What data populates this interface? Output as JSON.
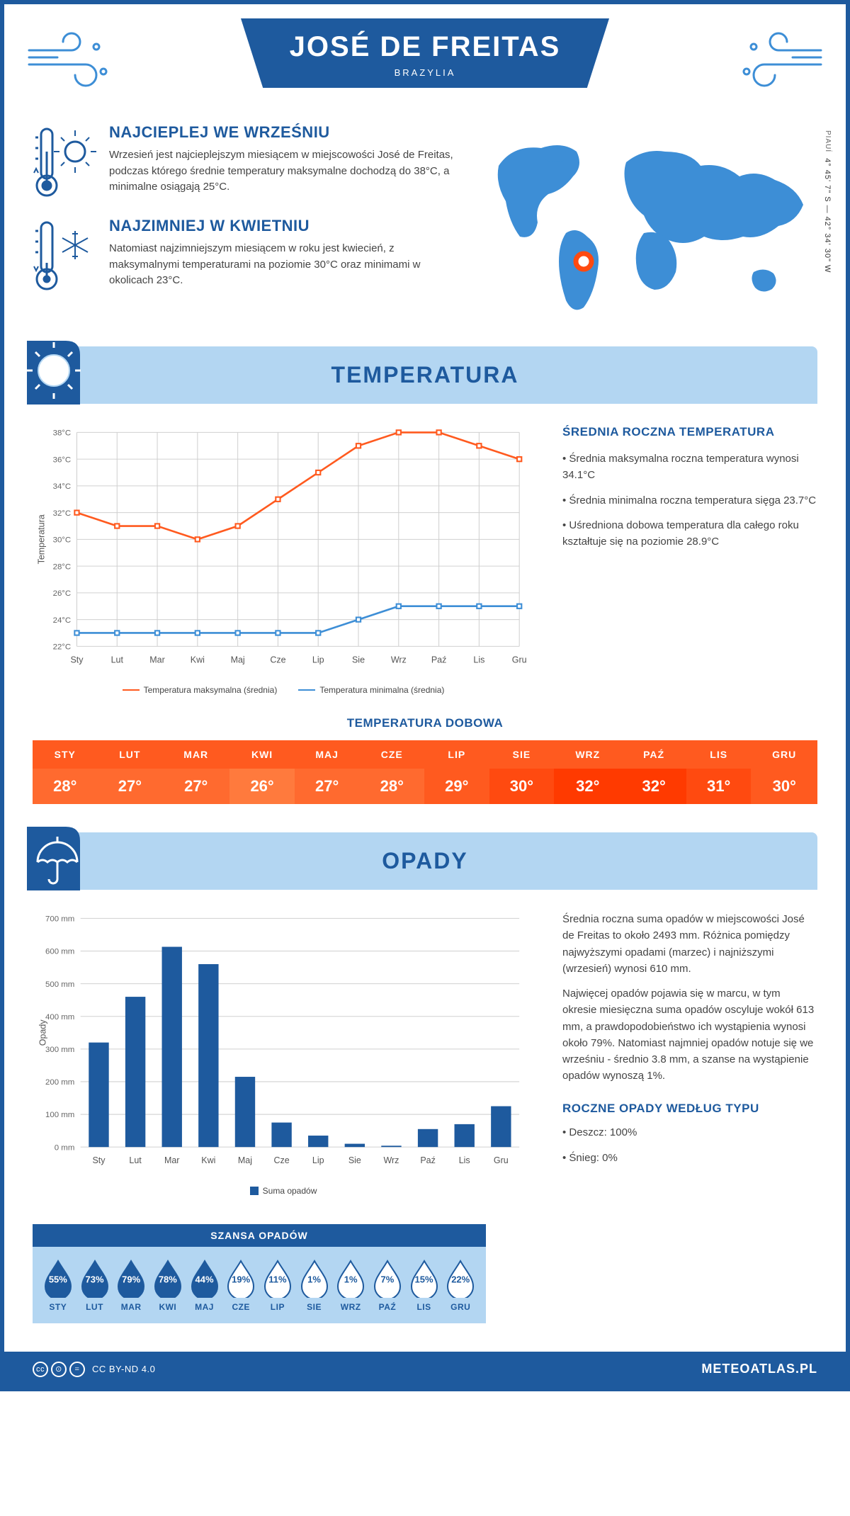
{
  "header": {
    "title": "JOSÉ DE FREITAS",
    "subtitle": "BRAZYLIA"
  },
  "coords": {
    "region": "PIAUÍ",
    "text": "4° 45' 7\" S — 42° 34' 30\" W"
  },
  "warmest": {
    "heading": "NAJCIEPLEJ WE WRZEŚNIU",
    "body": "Wrzesień jest najcieplejszym miesiącem w miejscowości José de Freitas, podczas którego średnie temperatury maksymalne dochodzą do 38°C, a minimalne osiągają 25°C."
  },
  "coldest": {
    "heading": "NAJZIMNIEJ W KWIETNIU",
    "body": "Natomiast najzimniejszym miesiącem w roku jest kwiecień, z maksymalnymi temperaturami na poziomie 30°C oraz minimami w okolicach 23°C."
  },
  "temperature_section": {
    "title": "TEMPERATURA",
    "side_heading": "ŚREDNIA ROCZNA TEMPERATURA",
    "bullets": [
      "Średnia maksymalna roczna temperatura wynosi 34.1°C",
      "Średnia minimalna roczna temperatura sięga 23.7°C",
      "Uśredniona dobowa temperatura dla całego roku kształtuje się na poziomie 28.9°C"
    ]
  },
  "months": [
    "Sty",
    "Lut",
    "Mar",
    "Kwi",
    "Maj",
    "Cze",
    "Lip",
    "Sie",
    "Wrz",
    "Paź",
    "Lis",
    "Gru"
  ],
  "months_upper": [
    "STY",
    "LUT",
    "MAR",
    "KWI",
    "MAJ",
    "CZE",
    "LIP",
    "SIE",
    "WRZ",
    "PAŹ",
    "LIS",
    "GRU"
  ],
  "temp_chart": {
    "type": "line",
    "ylabel": "Temperatura",
    "ymin": 22,
    "ymax": 38,
    "ytick_step": 2,
    "max_series": [
      32,
      31,
      31,
      30,
      31,
      33,
      35,
      37,
      38,
      38,
      37,
      36
    ],
    "min_series": [
      23,
      23,
      23,
      23,
      23,
      23,
      23,
      24,
      25,
      25,
      25,
      25
    ],
    "max_color": "#ff5a1f",
    "min_color": "#3d8ed6",
    "grid_color": "#d0d0d0",
    "legend_max": "Temperatura maksymalna (średnia)",
    "legend_min": "Temperatura minimalna (średnia)"
  },
  "daily_temp": {
    "title": "TEMPERATURA DOBOWA",
    "values": [
      "28°",
      "27°",
      "27°",
      "26°",
      "27°",
      "28°",
      "29°",
      "30°",
      "32°",
      "32°",
      "31°",
      "30°"
    ],
    "header_bg": "#ff5a1f",
    "row_bg": "#ff7a3d",
    "gradient_colors": [
      "#ff6a2f",
      "#ff6a2f",
      "#ff6a2f",
      "#ff7a3d",
      "#ff6a2f",
      "#ff6a2f",
      "#ff5a1f",
      "#ff4a10",
      "#ff3a00",
      "#ff3a00",
      "#ff4a10",
      "#ff5a1f"
    ]
  },
  "precip_section": {
    "title": "OPADY",
    "para1": "Średnia roczna suma opadów w miejscowości José de Freitas to około 2493 mm. Różnica pomiędzy najwyższymi opadami (marzec) i najniższymi (wrzesień) wynosi 610 mm.",
    "para2": "Najwięcej opadów pojawia się w marcu, w tym okresie miesięczna suma opadów oscyluje wokół 613 mm, a prawdopodobieństwo ich wystąpienia wynosi około 79%. Natomiast najmniej opadów notuje się we wrześniu - średnio 3.8 mm, a szanse na wystąpienie opadów wynoszą 1%."
  },
  "precip_chart": {
    "type": "bar",
    "ylabel": "Opady",
    "ymin": 0,
    "ymax": 700,
    "ytick_step": 100,
    "values": [
      320,
      460,
      613,
      560,
      215,
      75,
      35,
      10,
      4,
      55,
      70,
      125
    ],
    "bar_color": "#1e5a9e",
    "grid_color": "#d0d0d0",
    "legend": "Suma opadów"
  },
  "chance": {
    "title": "SZANSA OPADÓW",
    "values": [
      "55%",
      "73%",
      "79%",
      "78%",
      "44%",
      "19%",
      "11%",
      "1%",
      "1%",
      "7%",
      "15%",
      "22%"
    ],
    "filled": [
      true,
      true,
      true,
      true,
      true,
      false,
      false,
      false,
      false,
      false,
      false,
      false
    ],
    "fill_color": "#1e5a9e",
    "empty_color": "#ffffff",
    "stroke_color": "#1e5a9e"
  },
  "precip_type": {
    "heading": "ROCZNE OPADY WEDŁUG TYPU",
    "items": [
      "Deszcz: 100%",
      "Śnieg: 0%"
    ]
  },
  "footer": {
    "license": "CC BY-ND 4.0",
    "site": "METEOATLAS.PL"
  },
  "colors": {
    "brand": "#1e5a9e",
    "light_blue": "#b3d6f2",
    "map_blue": "#3d8ed6"
  }
}
